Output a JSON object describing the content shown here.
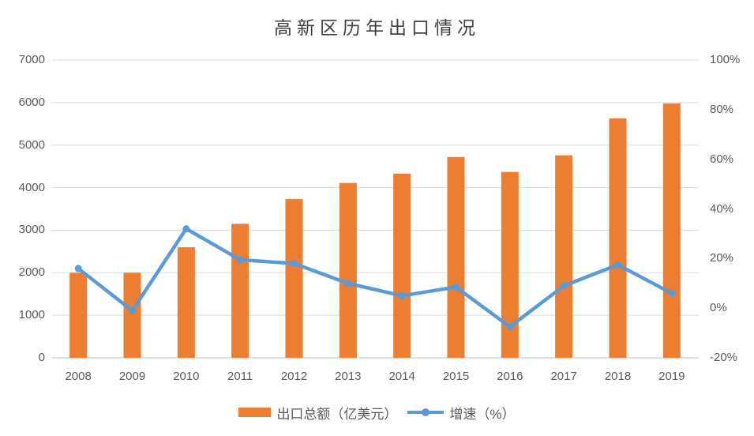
{
  "page": {
    "background": "#ffffff",
    "text_color": "#595959",
    "title_color": "#404040"
  },
  "chart_data": {
    "type": "combo",
    "title": "高新区历年出口情况",
    "categories": [
      "2008",
      "2009",
      "2010",
      "2011",
      "2012",
      "2013",
      "2014",
      "2015",
      "2016",
      "2017",
      "2018",
      "2019"
    ],
    "series": [
      {
        "name": "出口总额（亿美元）",
        "type": "bar",
        "axis": "left",
        "color": "#ED7D31",
        "values": [
          2000,
          2000,
          2600,
          3150,
          3730,
          4110,
          4330,
          4720,
          4370,
          4760,
          5630,
          5980
        ]
      },
      {
        "name": "增速（%）",
        "type": "line",
        "axis": "right",
        "color": "#5B9BD5",
        "values": [
          16,
          -1,
          32,
          19.5,
          18,
          10,
          5,
          8.5,
          -7.5,
          9,
          17.5,
          6
        ]
      }
    ],
    "left_axis": {
      "min": 0,
      "max": 7000,
      "step": 1000,
      "tick_labels": [
        "0",
        "1000",
        "2000",
        "3000",
        "4000",
        "5000",
        "6000",
        "7000"
      ]
    },
    "right_axis": {
      "min": -20,
      "max": 100,
      "step": 20,
      "tick_labels": [
        "-20%",
        "0%",
        "20%",
        "40%",
        "60%",
        "80%",
        "100%"
      ]
    },
    "grid": true,
    "gridline_color": "#D9D9D9",
    "baseline_color": "#BFBFBF",
    "legend_position": "bottom"
  }
}
